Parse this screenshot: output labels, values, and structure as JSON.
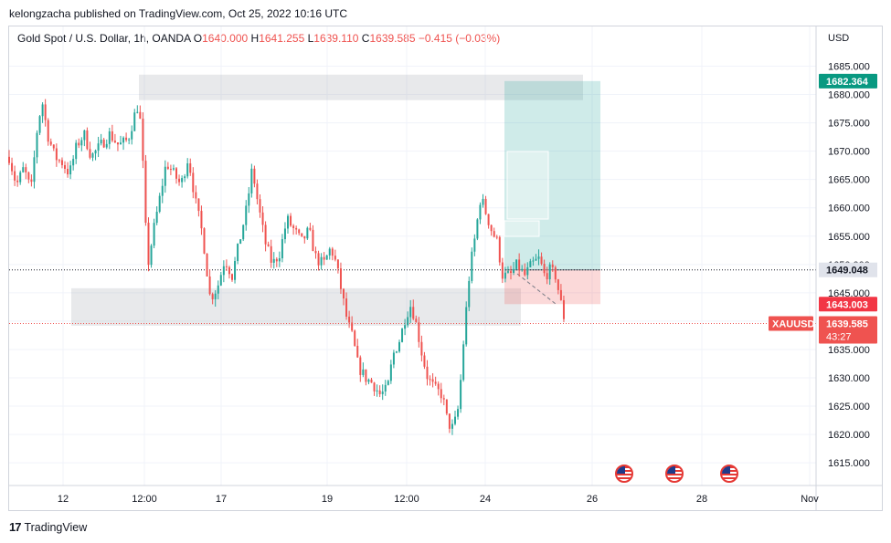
{
  "header": {
    "publisher": "kelongzacha published on TradingView.com, Oct 25, 2022 10:16 UTC"
  },
  "legend": {
    "symbol": "Gold Spot / U.S. Dollar, 1h, OANDA",
    "open_label": "O",
    "open": "1640.000",
    "high_label": "H",
    "high": "1641.255",
    "low_label": "L",
    "low": "1639.110",
    "close_label": "C",
    "close": "1639.585",
    "change": "−0.415 (−0.03%)"
  },
  "footer": {
    "brand": "TradingView",
    "logo": "17"
  },
  "colors": {
    "up": "#26a69a",
    "down": "#ef5350",
    "accent": "#089981"
  },
  "chart_data": {
    "type": "candlestick",
    "currency": "USD",
    "ylim": [
      1611,
      1692
    ],
    "x_ticks": [
      "12",
      "12:00",
      "17",
      "19",
      "12:00",
      "24",
      "26",
      "28",
      "Nov"
    ],
    "y_ticks": [
      "1685.000",
      "1680.000",
      "1675.000",
      "1670.000",
      "1665.000",
      "1660.000",
      "1655.000",
      "1650.000",
      "1645.000",
      "1640.000",
      "1635.000",
      "1630.000",
      "1625.000",
      "1620.000",
      "1615.000"
    ],
    "path": [
      [
        0,
        1669
      ],
      [
        8,
        1664
      ],
      [
        16,
        1667
      ],
      [
        24,
        1663
      ],
      [
        30,
        1673
      ],
      [
        36,
        1679
      ],
      [
        42,
        1673
      ],
      [
        50,
        1669
      ],
      [
        58,
        1668
      ],
      [
        66,
        1666
      ],
      [
        74,
        1671
      ],
      [
        82,
        1673
      ],
      [
        90,
        1669
      ],
      [
        100,
        1671
      ],
      [
        110,
        1673
      ],
      [
        120,
        1671
      ],
      [
        130,
        1672
      ],
      [
        140,
        1678
      ],
      [
        145,
        1674
      ],
      [
        148,
        1660
      ],
      [
        152,
        1650
      ],
      [
        158,
        1656
      ],
      [
        164,
        1661
      ],
      [
        172,
        1668
      ],
      [
        180,
        1666
      ],
      [
        188,
        1664
      ],
      [
        196,
        1669
      ],
      [
        204,
        1661
      ],
      [
        212,
        1655
      ],
      [
        220,
        1644
      ],
      [
        228,
        1646
      ],
      [
        236,
        1651
      ],
      [
        244,
        1648
      ],
      [
        252,
        1654
      ],
      [
        260,
        1660
      ],
      [
        266,
        1667
      ],
      [
        272,
        1661
      ],
      [
        280,
        1654
      ],
      [
        288,
        1650
      ],
      [
        296,
        1652
      ],
      [
        304,
        1658
      ],
      [
        312,
        1656
      ],
      [
        320,
        1654
      ],
      [
        328,
        1656
      ],
      [
        336,
        1651
      ],
      [
        344,
        1650
      ],
      [
        352,
        1653
      ],
      [
        358,
        1650
      ],
      [
        364,
        1645
      ],
      [
        370,
        1640
      ],
      [
        376,
        1637
      ],
      [
        382,
        1632
      ],
      [
        390,
        1630
      ],
      [
        398,
        1629
      ],
      [
        406,
        1627
      ],
      [
        414,
        1628
      ],
      [
        420,
        1634
      ],
      [
        428,
        1637
      ],
      [
        434,
        1641
      ],
      [
        440,
        1643
      ],
      [
        446,
        1639
      ],
      [
        452,
        1634
      ],
      [
        458,
        1630
      ],
      [
        466,
        1628
      ],
      [
        474,
        1627
      ],
      [
        480,
        1622
      ],
      [
        486,
        1621
      ],
      [
        492,
        1625
      ],
      [
        498,
        1638
      ],
      [
        504,
        1649
      ],
      [
        510,
        1655
      ],
      [
        516,
        1662
      ],
      [
        522,
        1659
      ],
      [
        528,
        1656
      ],
      [
        534,
        1654
      ],
      [
        540,
        1648
      ],
      [
        548,
        1648
      ],
      [
        556,
        1650
      ],
      [
        564,
        1648
      ],
      [
        572,
        1650
      ],
      [
        580,
        1651
      ],
      [
        586,
        1648
      ],
      [
        592,
        1649
      ],
      [
        598,
        1648
      ],
      [
        604,
        1643
      ],
      [
        608,
        1640
      ]
    ],
    "zones": [
      {
        "x1": 1,
        "x2": 67,
        "y_top": 1683.5,
        "y_bottom": 1679.0
      },
      {
        "x1": 4,
        "x2": 68,
        "y_top": 1645.8,
        "y_bottom": 1639.2
      }
    ],
    "position": {
      "entry": 1649.048,
      "target": 1682.364,
      "stop": 1643.003
    },
    "last_price": 1639.585,
    "countdown": "43:27",
    "symbol_tag": "XAUUSD",
    "price_labels": {
      "target": "1682.364",
      "entry": "1649.048",
      "stop": "1643.003",
      "last": "1639.585"
    }
  }
}
